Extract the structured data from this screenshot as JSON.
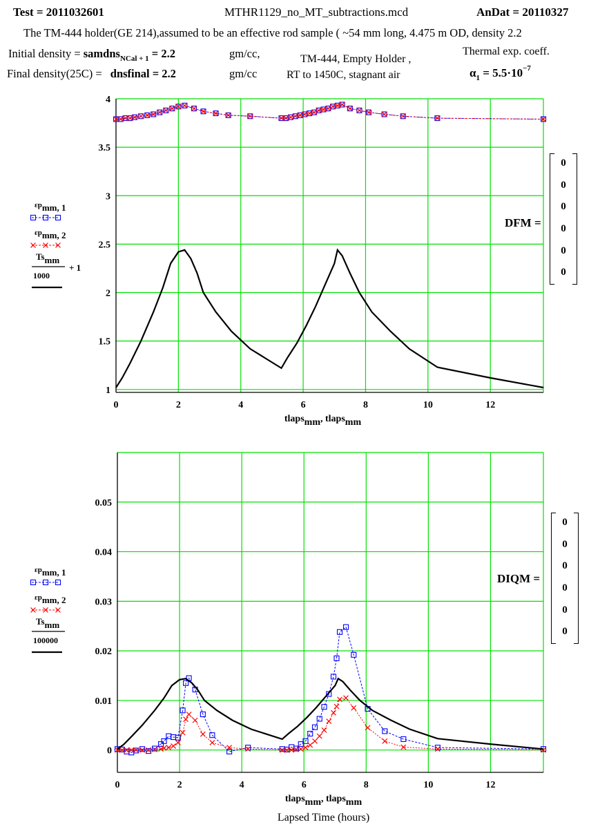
{
  "header": {
    "test": "Test = 2011032601",
    "file": "MTHR1129_no_MT_subtractions.mcd",
    "andat": "AnDat = 20110327",
    "description": "The TM-444 holder(GE 214),assumed to be an effective rod sample ( ~54 mm long, 4.475 m OD, density 2.2",
    "initial_density_label": "Initial density = ",
    "initial_density_var": "samdns",
    "initial_density_sub": "NCal + 1",
    "initial_density_val": " = 2.2",
    "initial_density_unit": "gm/cc,",
    "final_density_label": "Final density(25C) = ",
    "final_density_var": "dnsfinal = 2.2",
    "final_density_unit": "gm/cc",
    "note_line1": "TM-444, Empty Holder ,",
    "note_line2": "RT to 1450C, stagnant air",
    "thermal_label": "Thermal exp. coeff.",
    "alpha_sym": "α",
    "alpha_sub": "1",
    "alpha_val": " = 5.5·10",
    "alpha_exp": "−7"
  },
  "dfm": {
    "label": "DFM =",
    "values": [
      "0",
      "0",
      "0",
      "0",
      "0",
      "0"
    ]
  },
  "diqm": {
    "label": "DIQM =",
    "values": [
      "0",
      "0",
      "0",
      "0",
      "0",
      "0"
    ]
  },
  "colors": {
    "grid": "#00e000",
    "series1": "#0000ff",
    "series2": "#ff0000",
    "series3": "#000000"
  },
  "chart_data": [
    {
      "type": "line",
      "xlim": [
        0,
        13.7
      ],
      "ylim": [
        0.97,
        4
      ],
      "xticks": [
        "0",
        "2",
        "4",
        "6",
        "8",
        "10",
        "12"
      ],
      "yticks": [
        "1",
        "1.5",
        "2",
        "2.5",
        "3",
        "3.5",
        "4"
      ],
      "xlabel_main": "tlaps",
      "xlabel_sub": "mm",
      "xlabel_sep": ", ",
      "legend": [
        {
          "name": "εp",
          "sub": "mm, 1",
          "marker": "square"
        },
        {
          "name": "εp",
          "sub": "mm, 2",
          "marker": "x"
        },
        {
          "name": "Ts",
          "sub": "mm",
          "denominator": "1000",
          "suffix": "+ 1",
          "marker": "line"
        }
      ],
      "series": [
        {
          "x": [
            0,
            0.15,
            0.3,
            0.45,
            0.6,
            0.8,
            1.0,
            1.2,
            1.4,
            1.6,
            1.8,
            2.0,
            2.2,
            2.5,
            2.8,
            3.2,
            3.6,
            4.3,
            5.3,
            5.45,
            5.6,
            5.75,
            5.9,
            6.05,
            6.2,
            6.35,
            6.5,
            6.65,
            6.8,
            6.95,
            7.1,
            7.25,
            7.5,
            7.8,
            8.1,
            8.6,
            9.2,
            10.3,
            13.7
          ],
          "y": [
            3.79,
            3.79,
            3.8,
            3.8,
            3.81,
            3.82,
            3.83,
            3.84,
            3.86,
            3.88,
            3.9,
            3.92,
            3.93,
            3.9,
            3.87,
            3.85,
            3.83,
            3.82,
            3.8,
            3.8,
            3.81,
            3.82,
            3.83,
            3.84,
            3.85,
            3.86,
            3.88,
            3.89,
            3.9,
            3.92,
            3.93,
            3.94,
            3.9,
            3.88,
            3.86,
            3.84,
            3.82,
            3.8,
            3.79
          ]
        },
        {
          "x": [
            0,
            0.15,
            0.3,
            0.45,
            0.6,
            0.8,
            1.0,
            1.2,
            1.4,
            1.6,
            1.8,
            2.0,
            2.2,
            2.5,
            2.8,
            3.2,
            3.6,
            4.3,
            5.3,
            5.45,
            5.6,
            5.75,
            5.9,
            6.05,
            6.2,
            6.35,
            6.5,
            6.65,
            6.8,
            6.95,
            7.1,
            7.25,
            7.5,
            7.8,
            8.1,
            8.6,
            9.2,
            10.3,
            13.7
          ],
          "y": [
            3.79,
            3.79,
            3.8,
            3.8,
            3.81,
            3.82,
            3.83,
            3.84,
            3.86,
            3.88,
            3.9,
            3.92,
            3.93,
            3.9,
            3.87,
            3.85,
            3.83,
            3.82,
            3.8,
            3.8,
            3.81,
            3.82,
            3.83,
            3.84,
            3.85,
            3.86,
            3.88,
            3.89,
            3.9,
            3.92,
            3.93,
            3.94,
            3.9,
            3.88,
            3.86,
            3.84,
            3.82,
            3.8,
            3.79
          ]
        },
        {
          "x": [
            0,
            0.2,
            0.45,
            0.8,
            1.2,
            1.5,
            1.75,
            2.0,
            2.2,
            2.4,
            2.6,
            2.8,
            3.2,
            3.7,
            4.3,
            5.3,
            5.5,
            5.8,
            6.1,
            6.4,
            6.7,
            7.0,
            7.1,
            7.25,
            7.5,
            7.8,
            8.2,
            8.8,
            9.4,
            10.3,
            12.0,
            13.7
          ],
          "y": [
            1.02,
            1.12,
            1.27,
            1.5,
            1.8,
            2.05,
            2.3,
            2.42,
            2.44,
            2.35,
            2.2,
            2.0,
            1.8,
            1.6,
            1.42,
            1.22,
            1.33,
            1.48,
            1.66,
            1.86,
            2.08,
            2.3,
            2.44,
            2.38,
            2.2,
            2.0,
            1.8,
            1.6,
            1.42,
            1.23,
            1.12,
            1.02
          ]
        }
      ]
    },
    {
      "type": "line",
      "xlim": [
        0,
        13.7
      ],
      "ylim": [
        -0.0045,
        0.06
      ],
      "xticks": [
        "0",
        "2",
        "4",
        "6",
        "8",
        "10",
        "12"
      ],
      "yticks": [
        "0",
        "0.01",
        "0.02",
        "0.03",
        "0.04",
        "0.05"
      ],
      "xlabel_main": "tlaps",
      "xlabel_sub": "mm",
      "xlabel_sep": ", ",
      "title_below": "Lapsed Time (hours)",
      "legend": [
        {
          "name": "εp",
          "sub": "mm, 1",
          "marker": "square"
        },
        {
          "name": "εp",
          "sub": "mm, 2",
          "marker": "x"
        },
        {
          "name": "Ts",
          "sub": "mm",
          "denominator": "100000",
          "marker": "line"
        }
      ],
      "series": [
        {
          "x": [
            0,
            0.15,
            0.3,
            0.45,
            0.6,
            0.8,
            1.0,
            1.2,
            1.4,
            1.5,
            1.65,
            1.8,
            1.95,
            2.1,
            2.2,
            2.3,
            2.5,
            2.75,
            3.05,
            3.6,
            4.2,
            5.3,
            5.45,
            5.6,
            5.75,
            5.9,
            6.05,
            6.2,
            6.35,
            6.5,
            6.65,
            6.8,
            6.95,
            7.05,
            7.15,
            7.35,
            7.6,
            8.05,
            8.6,
            9.2,
            10.3,
            13.7
          ],
          "y": [
            0.0002,
            0.0001,
            -0.0003,
            -0.0005,
            -0.0001,
            0.0002,
            -0.0002,
            0.0003,
            0.0012,
            0.0018,
            0.0028,
            0.0026,
            0.0025,
            0.008,
            0.0135,
            0.0145,
            0.0122,
            0.0072,
            0.003,
            -0.0003,
            0.0005,
            0.0002,
            0.0001,
            0.0006,
            0.0003,
            0.0012,
            0.0018,
            0.0033,
            0.0046,
            0.0063,
            0.0087,
            0.0113,
            0.0148,
            0.0185,
            0.0238,
            0.0248,
            0.0192,
            0.0083,
            0.0038,
            0.0022,
            0.0005,
            0.0002
          ]
        },
        {
          "x": [
            0,
            0.15,
            0.3,
            0.45,
            0.6,
            0.8,
            1.0,
            1.2,
            1.4,
            1.5,
            1.65,
            1.8,
            1.95,
            2.1,
            2.2,
            2.3,
            2.5,
            2.75,
            3.05,
            3.6,
            4.2,
            5.3,
            5.45,
            5.6,
            5.75,
            5.9,
            6.05,
            6.2,
            6.35,
            6.5,
            6.65,
            6.8,
            6.95,
            7.05,
            7.15,
            7.35,
            7.6,
            8.05,
            8.6,
            9.2,
            10.3,
            13.7
          ],
          "y": [
            0,
            0,
            0,
            0,
            0,
            0,
            0,
            0.0001,
            0.0002,
            0.0004,
            0.0005,
            0.0008,
            0.0015,
            0.0035,
            0.0062,
            0.0072,
            0.006,
            0.0032,
            0.0015,
            0.0005,
            0.0002,
            0,
            0,
            0,
            0.0001,
            0.0002,
            0.0005,
            0.001,
            0.0018,
            0.0028,
            0.004,
            0.0058,
            0.0075,
            0.0088,
            0.0102,
            0.0105,
            0.0085,
            0.0045,
            0.0018,
            0.0006,
            0.0002,
            0
          ]
        },
        {
          "x": [
            0,
            0.2,
            0.45,
            0.8,
            1.2,
            1.5,
            1.75,
            2.0,
            2.2,
            2.4,
            2.6,
            2.8,
            3.2,
            3.7,
            4.3,
            5.3,
            5.5,
            5.8,
            6.1,
            6.4,
            6.7,
            7.0,
            7.1,
            7.25,
            7.5,
            7.8,
            8.2,
            8.8,
            9.4,
            10.3,
            12.0,
            13.7
          ],
          "y": [
            0.0002,
            0.0011,
            0.0027,
            0.005,
            0.008,
            0.0105,
            0.013,
            0.0142,
            0.0144,
            0.0135,
            0.012,
            0.01,
            0.008,
            0.006,
            0.0042,
            0.0022,
            0.0033,
            0.0048,
            0.0066,
            0.0086,
            0.0108,
            0.013,
            0.0144,
            0.0138,
            0.012,
            0.01,
            0.008,
            0.006,
            0.0042,
            0.0023,
            0.0012,
            0.0002
          ]
        }
      ]
    }
  ]
}
